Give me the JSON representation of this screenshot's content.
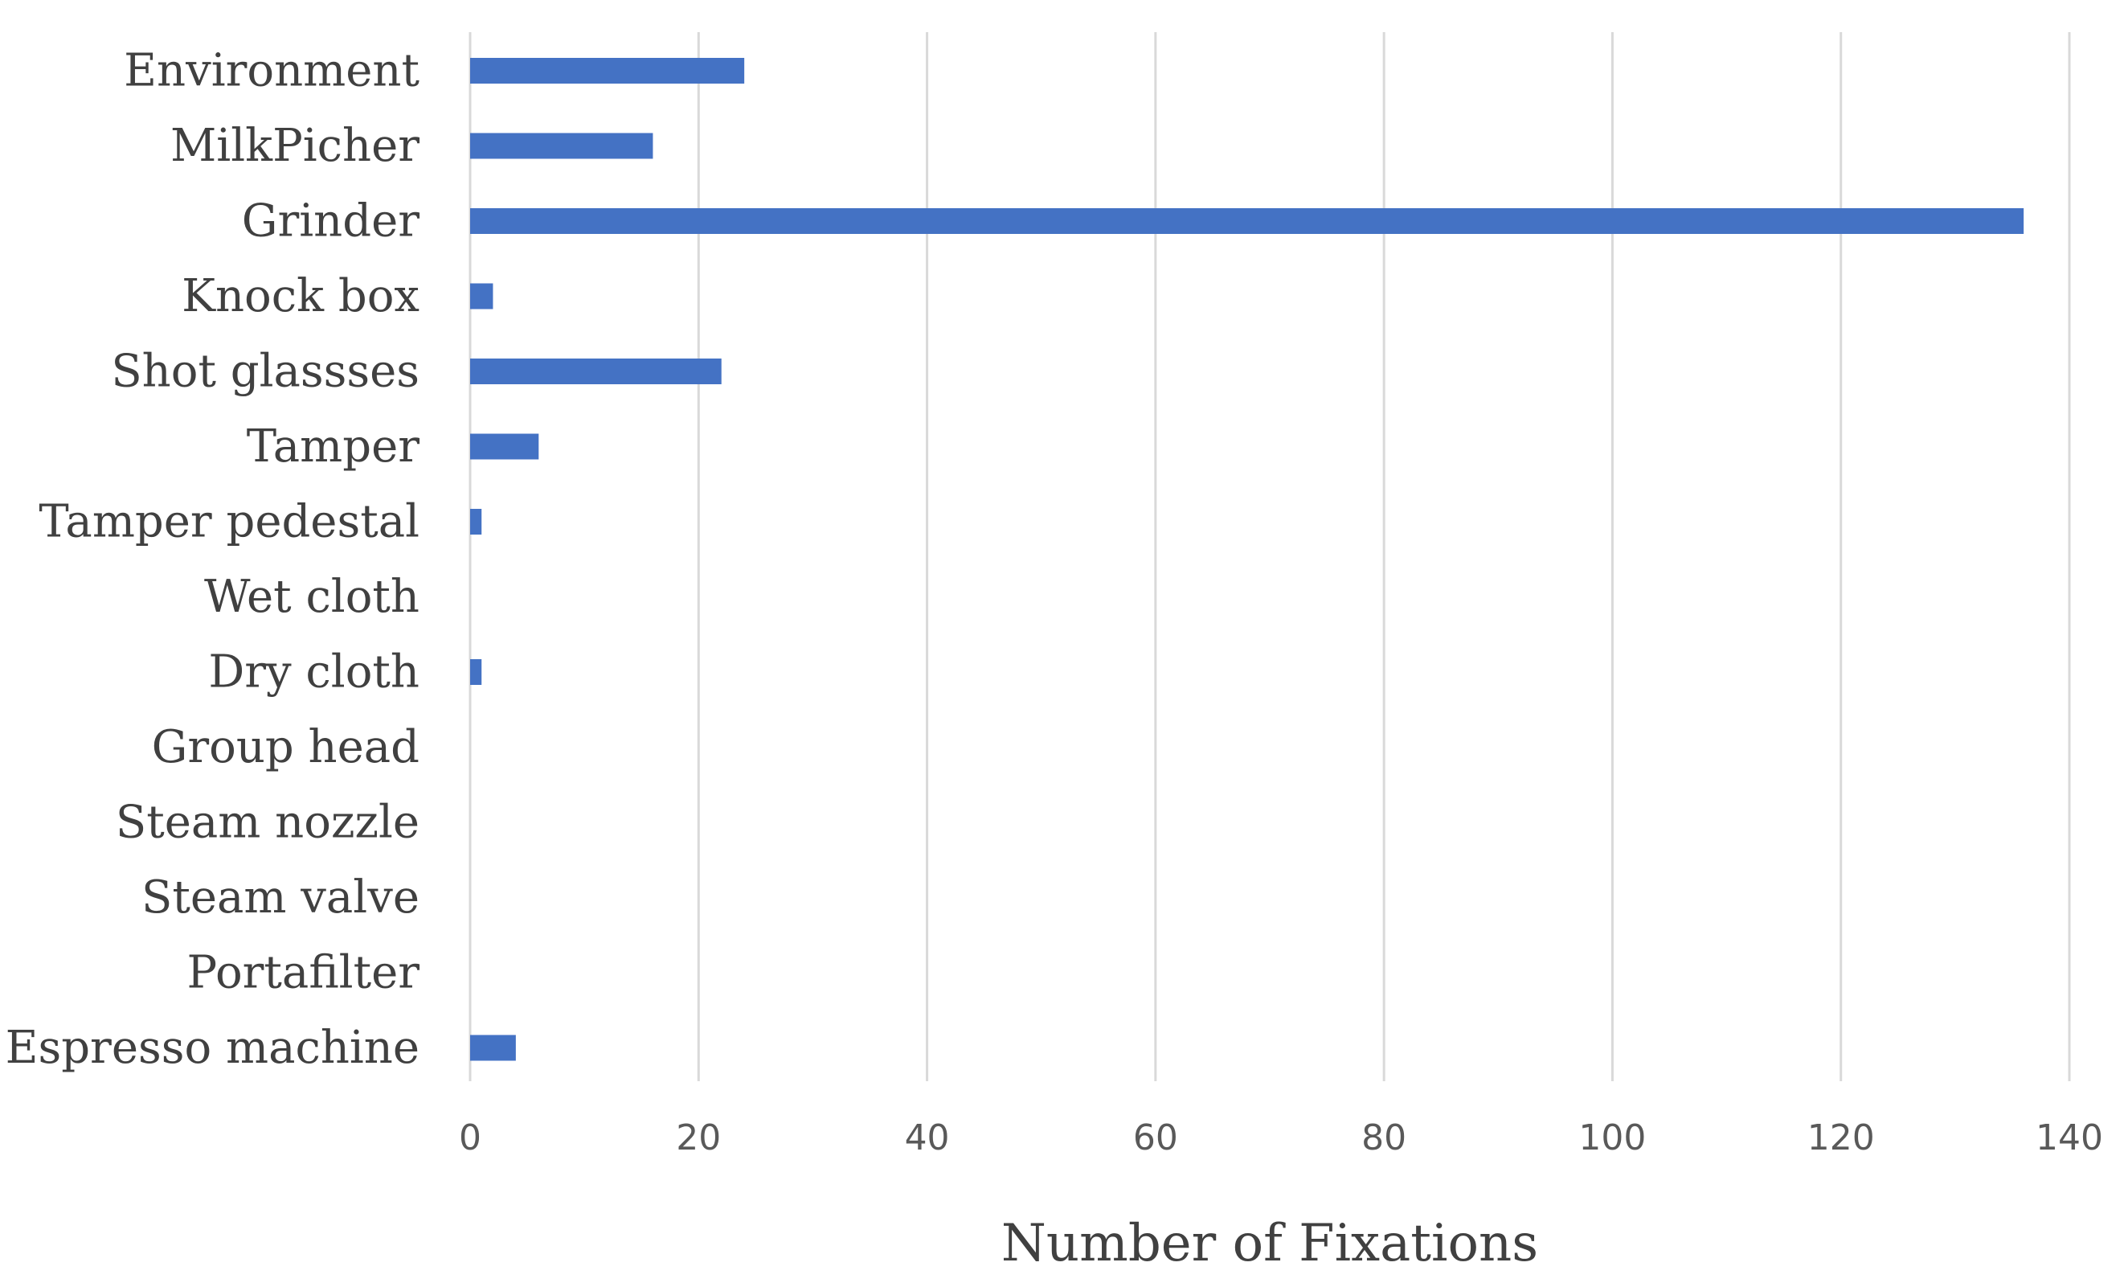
{
  "chart_data": {
    "type": "bar",
    "orientation": "horizontal",
    "title": "",
    "xlabel": "Number of Fixations",
    "ylabel": "",
    "xlim": [
      0,
      140
    ],
    "x_ticks": [
      0,
      20,
      40,
      60,
      80,
      100,
      120,
      140
    ],
    "grid": true,
    "legend": "none",
    "bar_color": "#4472c4",
    "categories": [
      "Environment",
      "MilkPicher",
      "Grinder",
      "Knock box",
      "Shot glassses",
      "Tamper",
      "Tamper pedestal",
      "Wet cloth",
      "Dry cloth",
      "Group head",
      "Steam nozzle",
      "Steam valve",
      "Portafilter",
      "Espresso machine"
    ],
    "values": [
      24,
      16,
      136,
      2,
      22,
      6,
      1,
      0,
      1,
      0,
      0,
      0,
      0,
      4
    ]
  }
}
